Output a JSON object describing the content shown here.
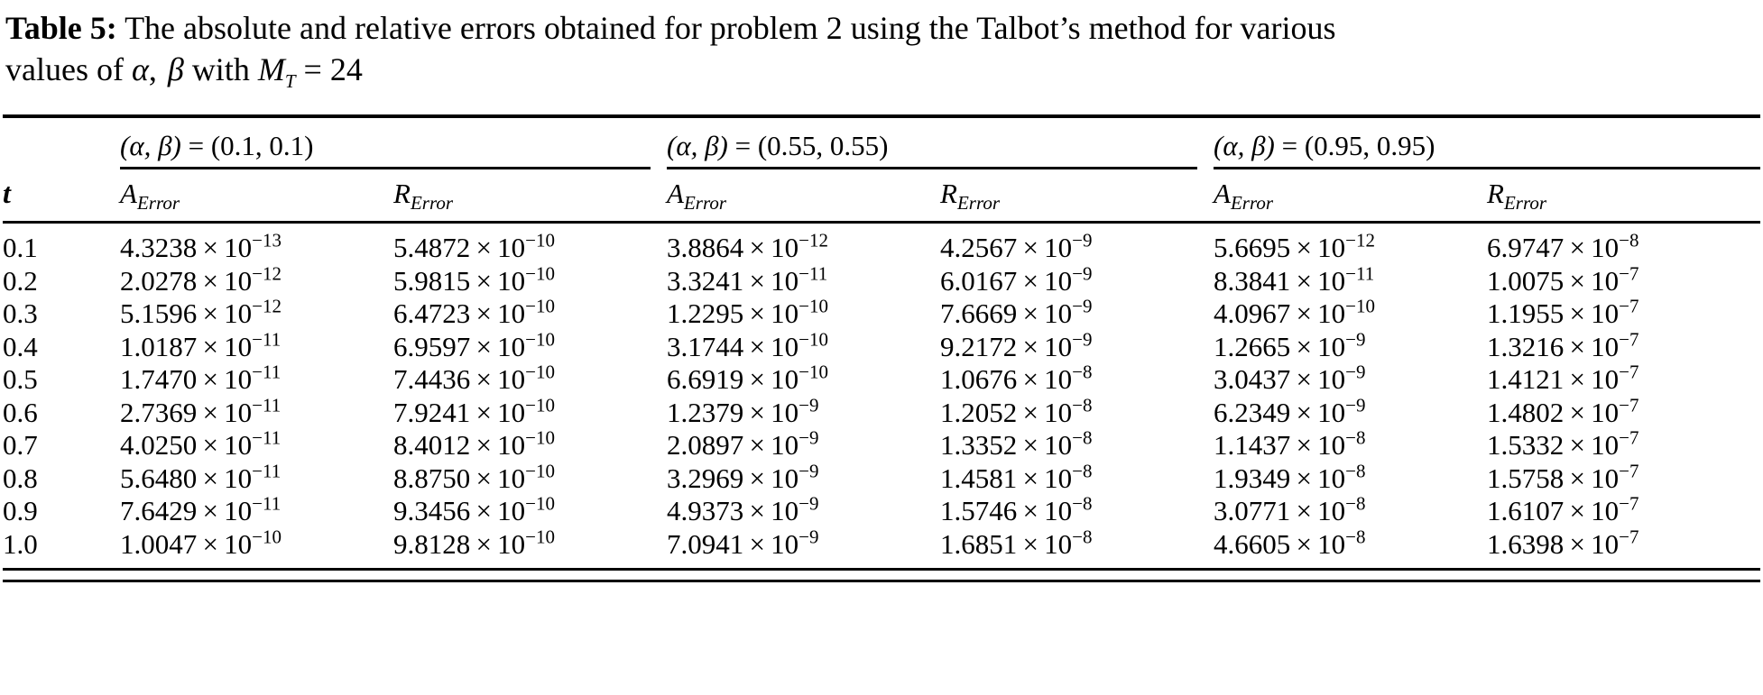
{
  "caption": {
    "label": "Table 5:",
    "body": "The absolute and relative errors obtained for problem 2 using the Talbot’s method for various",
    "line2": {
      "prefix": "values of",
      "alpha": "α",
      "sep": ",",
      "beta": "β",
      "middle": "with",
      "var_base": "M",
      "var_sub": "T",
      "tail": "= 24"
    }
  },
  "table": {
    "t_header": "t",
    "headers": {
      "A": "A",
      "R": "R",
      "sub": "Error"
    },
    "groups": [
      {
        "vars": "(α, β)",
        "eq": "=",
        "value": "(0.1, 0.1)"
      },
      {
        "vars": "(α, β)",
        "eq": "=",
        "value": "(0.55, 0.55)"
      },
      {
        "vars": "(α, β)",
        "eq": "=",
        "value": "(0.95, 0.95)"
      }
    ],
    "times_base": " × 10",
    "rows": [
      {
        "t": "0.1",
        "cells": [
          {
            "m": "4.3238",
            "e": "−13"
          },
          {
            "m": "5.4872",
            "e": "−10"
          },
          {
            "m": "3.8864",
            "e": "−12"
          },
          {
            "m": "4.2567",
            "e": "−9"
          },
          {
            "m": "5.6695",
            "e": "−12"
          },
          {
            "m": "6.9747",
            "e": "−8"
          }
        ]
      },
      {
        "t": "0.2",
        "cells": [
          {
            "m": "2.0278",
            "e": "−12"
          },
          {
            "m": "5.9815",
            "e": "−10"
          },
          {
            "m": "3.3241",
            "e": "−11"
          },
          {
            "m": "6.0167",
            "e": "−9"
          },
          {
            "m": "8.3841",
            "e": "−11"
          },
          {
            "m": "1.0075",
            "e": "−7"
          }
        ]
      },
      {
        "t": "0.3",
        "cells": [
          {
            "m": "5.1596",
            "e": "−12"
          },
          {
            "m": "6.4723",
            "e": "−10"
          },
          {
            "m": "1.2295",
            "e": "−10"
          },
          {
            "m": "7.6669",
            "e": "−9"
          },
          {
            "m": "4.0967",
            "e": "−10"
          },
          {
            "m": "1.1955",
            "e": "−7"
          }
        ]
      },
      {
        "t": "0.4",
        "cells": [
          {
            "m": "1.0187",
            "e": "−11"
          },
          {
            "m": "6.9597",
            "e": "−10"
          },
          {
            "m": "3.1744",
            "e": "−10"
          },
          {
            "m": "9.2172",
            "e": "−9"
          },
          {
            "m": "1.2665",
            "e": "−9"
          },
          {
            "m": "1.3216",
            "e": "−7"
          }
        ]
      },
      {
        "t": "0.5",
        "cells": [
          {
            "m": "1.7470",
            "e": "−11"
          },
          {
            "m": "7.4436",
            "e": "−10"
          },
          {
            "m": "6.6919",
            "e": "−10"
          },
          {
            "m": "1.0676",
            "e": "−8"
          },
          {
            "m": "3.0437",
            "e": "−9"
          },
          {
            "m": "1.4121",
            "e": "−7"
          }
        ]
      },
      {
        "t": "0.6",
        "cells": [
          {
            "m": "2.7369",
            "e": "−11"
          },
          {
            "m": "7.9241",
            "e": "−10"
          },
          {
            "m": "1.2379",
            "e": "−9"
          },
          {
            "m": "1.2052",
            "e": "−8"
          },
          {
            "m": "6.2349",
            "e": "−9"
          },
          {
            "m": "1.4802",
            "e": "−7"
          }
        ]
      },
      {
        "t": "0.7",
        "cells": [
          {
            "m": "4.0250",
            "e": "−11"
          },
          {
            "m": "8.4012",
            "e": "−10"
          },
          {
            "m": "2.0897",
            "e": "−9"
          },
          {
            "m": "1.3352",
            "e": "−8"
          },
          {
            "m": "1.1437",
            "e": "−8"
          },
          {
            "m": "1.5332",
            "e": "−7"
          }
        ]
      },
      {
        "t": "0.8",
        "cells": [
          {
            "m": "5.6480",
            "e": "−11"
          },
          {
            "m": "8.8750",
            "e": "−10"
          },
          {
            "m": "3.2969",
            "e": "−9"
          },
          {
            "m": "1.4581",
            "e": "−8"
          },
          {
            "m": "1.9349",
            "e": "−8"
          },
          {
            "m": "1.5758",
            "e": "−7"
          }
        ]
      },
      {
        "t": "0.9",
        "cells": [
          {
            "m": "7.6429",
            "e": "−11"
          },
          {
            "m": "9.3456",
            "e": "−10"
          },
          {
            "m": "4.9373",
            "e": "−9"
          },
          {
            "m": "1.5746",
            "e": "−8"
          },
          {
            "m": "3.0771",
            "e": "−8"
          },
          {
            "m": "1.6107",
            "e": "−7"
          }
        ]
      },
      {
        "t": "1.0",
        "cells": [
          {
            "m": "1.0047",
            "e": "−10"
          },
          {
            "m": "9.8128",
            "e": "−10"
          },
          {
            "m": "7.0941",
            "e": "−9"
          },
          {
            "m": "1.6851",
            "e": "−8"
          },
          {
            "m": "4.6605",
            "e": "−8"
          },
          {
            "m": "1.6398",
            "e": "−7"
          }
        ]
      }
    ]
  }
}
